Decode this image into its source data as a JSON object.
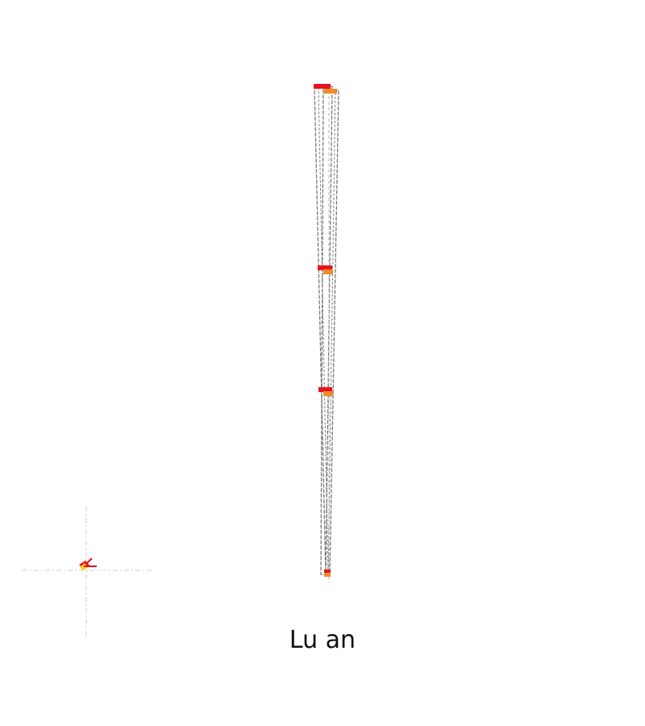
{
  "caption": "Lu an",
  "colors": {
    "background": "#ffffff",
    "outline": "#7a7a7a",
    "outline_light": "#b5b5b5",
    "marker_primary": "#e8141b",
    "marker_secondary": "#f08a2a",
    "marker_tertiary": "#f5d21a",
    "crosshair": "#cfcfcf"
  },
  "icons": [
    "compass-rose-icon"
  ]
}
